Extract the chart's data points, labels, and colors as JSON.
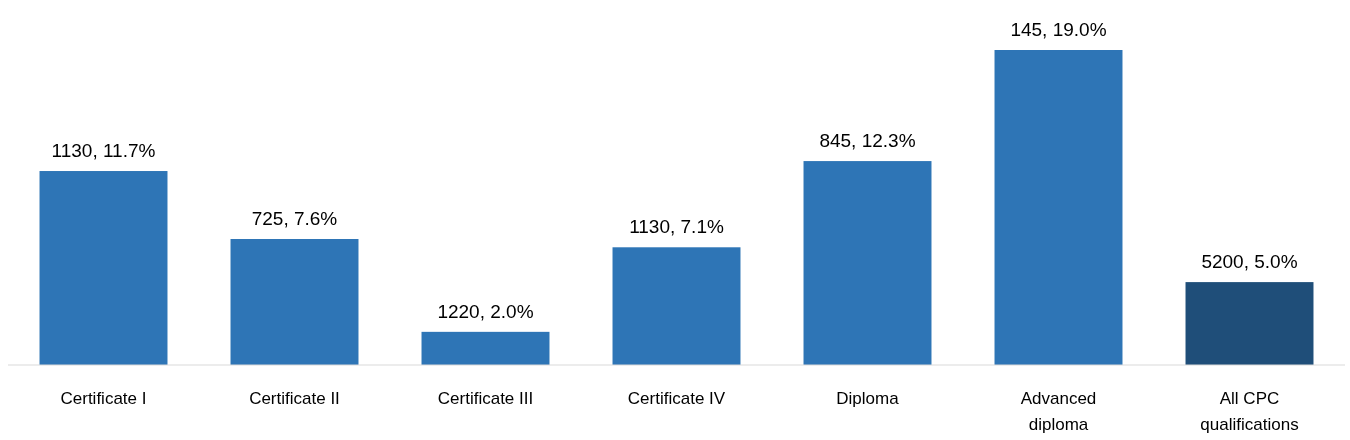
{
  "chart_data": {
    "type": "bar",
    "categories": [
      "Certificate I",
      "Certificate II",
      "Certificate III",
      "Certificate IV",
      "Diploma",
      "Advanced diploma",
      "All CPC qualifications"
    ],
    "values": [
      11.7,
      7.6,
      2.0,
      7.1,
      12.3,
      19.0,
      5.0
    ],
    "value_labels": [
      "1130, 11.7%",
      "725, 7.6%",
      "1220, 2.0%",
      "1130, 7.1%",
      "845, 12.3%",
      "145, 19.0%",
      "5200, 5.0%"
    ],
    "colors": [
      "#2e75b6",
      "#2e75b6",
      "#2e75b6",
      "#2e75b6",
      "#2e75b6",
      "#2e75b6",
      "#1f4e79"
    ]
  }
}
